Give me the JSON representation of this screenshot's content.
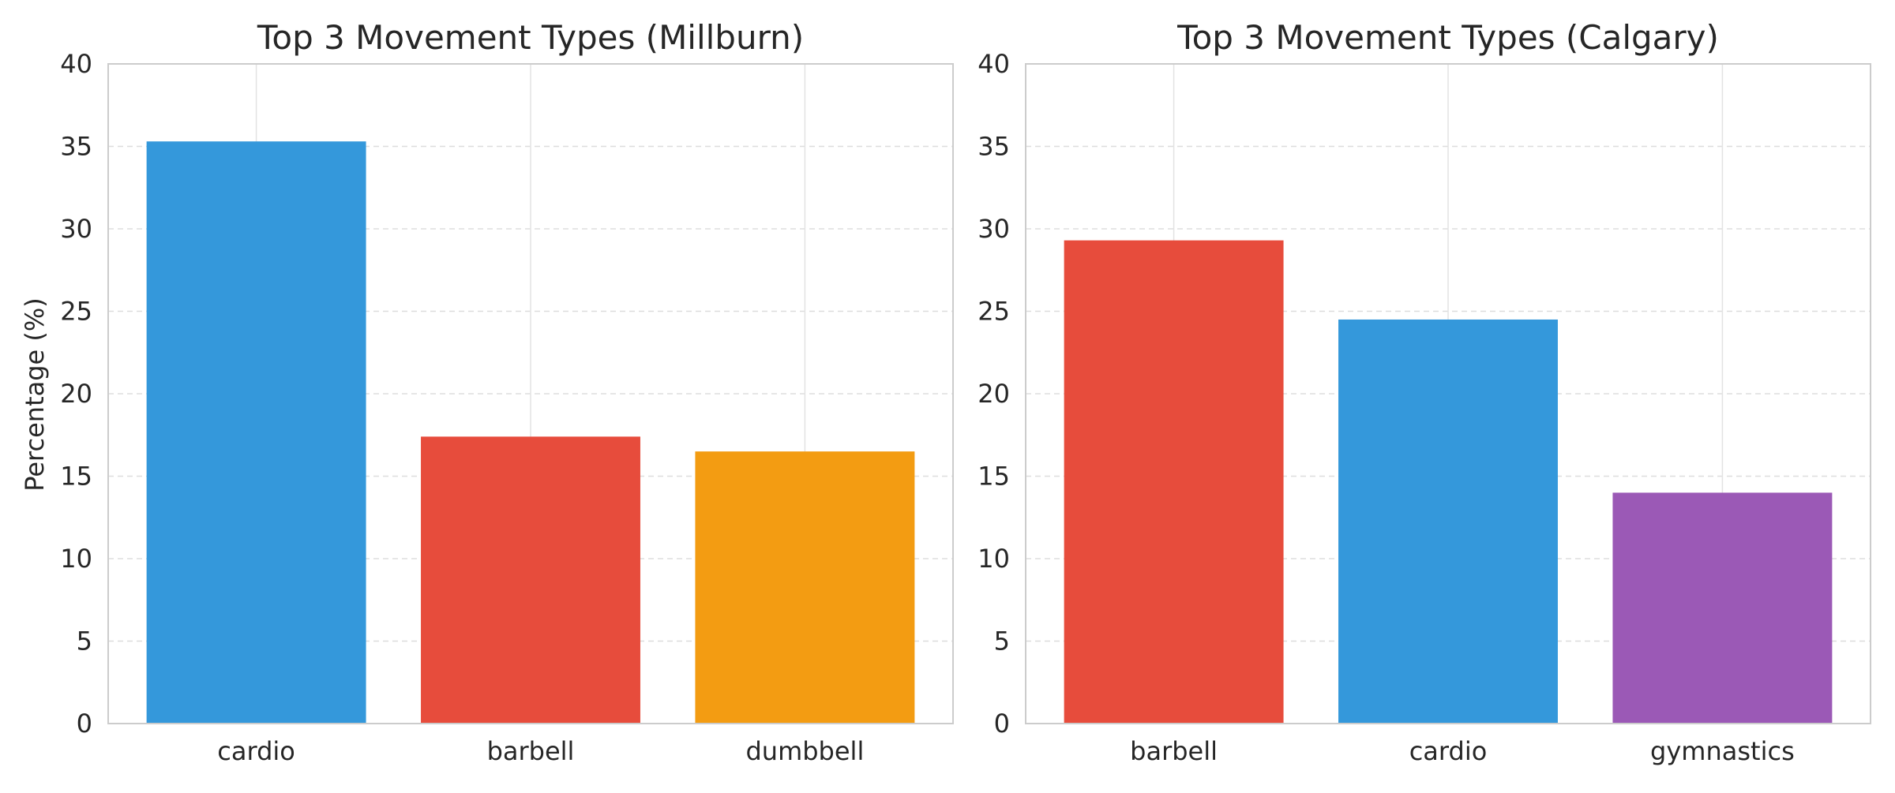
{
  "chart_data": [
    {
      "type": "bar",
      "title": "Top 3 Movement Types (Millburn)",
      "xlabel": "",
      "ylabel": "Percentage (%)",
      "categories": [
        "cardio",
        "barbell",
        "dumbbell"
      ],
      "values": [
        35.3,
        17.4,
        16.5
      ],
      "colors": [
        "#3498db",
        "#e74c3c",
        "#f39c12"
      ],
      "ylim": [
        0,
        40
      ],
      "yticks": [
        0,
        5,
        10,
        15,
        20,
        25,
        30,
        35,
        40
      ],
      "grid": true
    },
    {
      "type": "bar",
      "title": "Top 3 Movement Types (Calgary)",
      "xlabel": "",
      "ylabel": "",
      "categories": [
        "barbell",
        "cardio",
        "gymnastics"
      ],
      "values": [
        29.3,
        24.5,
        14.0
      ],
      "colors": [
        "#e74c3c",
        "#3498db",
        "#9b59b6"
      ],
      "ylim": [
        0,
        40
      ],
      "yticks": [
        0,
        5,
        10,
        15,
        20,
        25,
        30,
        35,
        40
      ],
      "grid": true
    }
  ]
}
